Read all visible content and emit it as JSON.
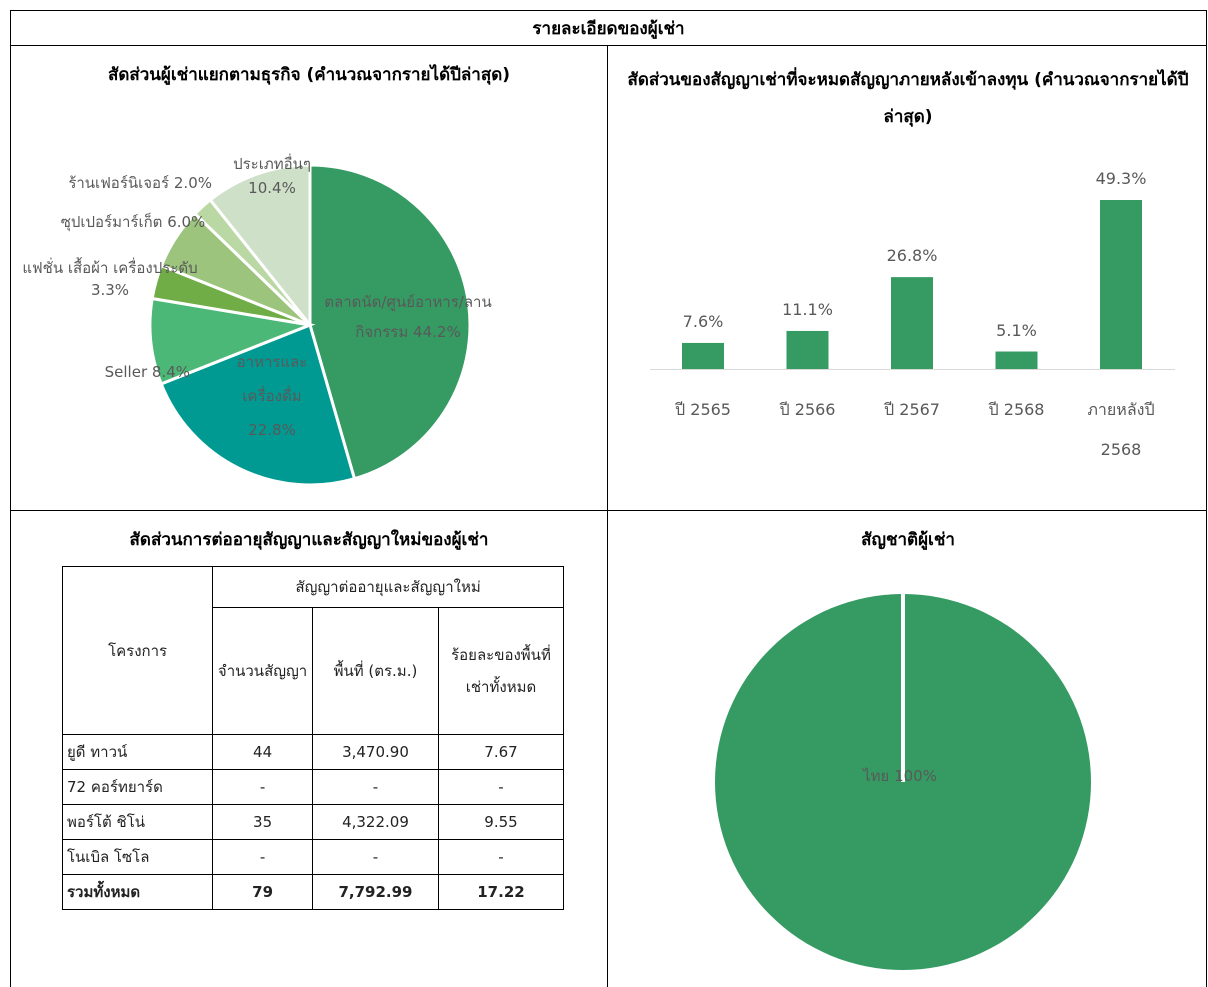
{
  "title": "รายละเอียดของผู้เช่า",
  "business_mix": {
    "type": "pie",
    "title": "สัดส่วนผู้เช่าแยกตามธุรกิจ (คำนวณจากรายได้ปีล่าสุด)",
    "categories": [
      "ตลาดนัด/ศูนย์อาหาร/ลานกิจกรรม",
      "อาหารและเครื่องดื่ม",
      "Seller",
      "แฟชั่น เสื้อผ้า เครื่องประดับ",
      "ซุปเปอร์มาร์เก็ต",
      "ร้านเฟอร์นิเจอร์",
      "ประเภทอื่นๆ"
    ],
    "values": [
      44.2,
      22.8,
      8.4,
      3.3,
      6.0,
      2.0,
      10.4
    ],
    "value_labels": [
      "44.2%",
      "22.8%",
      "8.4%",
      "3.3%",
      "6.0%",
      "2.0%",
      "10.4%"
    ],
    "colors": [
      "#359b63",
      "#009a93",
      "#4cb878",
      "#70ad47",
      "#9cc47c",
      "#b9d8a3",
      "#cfe0c9"
    ]
  },
  "lease_expiry": {
    "type": "bar",
    "title": "สัดส่วนของสัญญาเช่าที่จะหมดสัญญาภายหลังเข้าลงทุน (คำนวณจากรายได้ปีล่าสุด)",
    "categories": [
      "ปี 2565",
      "ปี 2566",
      "ปี 2567",
      "ปี 2568",
      "ภายหลังปี 2568"
    ],
    "values": [
      7.6,
      11.1,
      26.8,
      5.1,
      49.3
    ],
    "value_labels": [
      "7.6%",
      "11.1%",
      "26.8%",
      "5.1%",
      "49.3%"
    ],
    "color": "#359b63"
  },
  "renewal_table": {
    "title": "สัดส่วนการต่ออายุสัญญาและสัญญาใหม่ของผู้เช่า",
    "project_header": "โครงการ",
    "group_header": "สัญญาต่ออายุและสัญญาใหม่",
    "columns": [
      "จำนวนสัญญา",
      "พื้นที่ (ตร.ม.)",
      "ร้อยละของพื้นที่เช่าทั้งหมด"
    ],
    "rows": [
      [
        "ยูดี ทาวน์",
        "44",
        "3,470.90",
        "7.67"
      ],
      [
        "72 คอร์ทยาร์ด",
        "-",
        "-",
        "-"
      ],
      [
        "พอร์โต้ ชิโน่",
        "35",
        "4,322.09",
        "9.55"
      ],
      [
        "โนเบิล โซโล",
        "-",
        "-",
        "-"
      ]
    ],
    "total": [
      "รวมทั้งหมด",
      "79",
      "7,792.99",
      "17.22"
    ]
  },
  "nationality": {
    "type": "pie",
    "title": "สัญชาติผู้เช่า",
    "categories": [
      "ไทย"
    ],
    "values": [
      100
    ],
    "value_labels": [
      "100%"
    ],
    "colors": [
      "#359b63"
    ]
  }
}
